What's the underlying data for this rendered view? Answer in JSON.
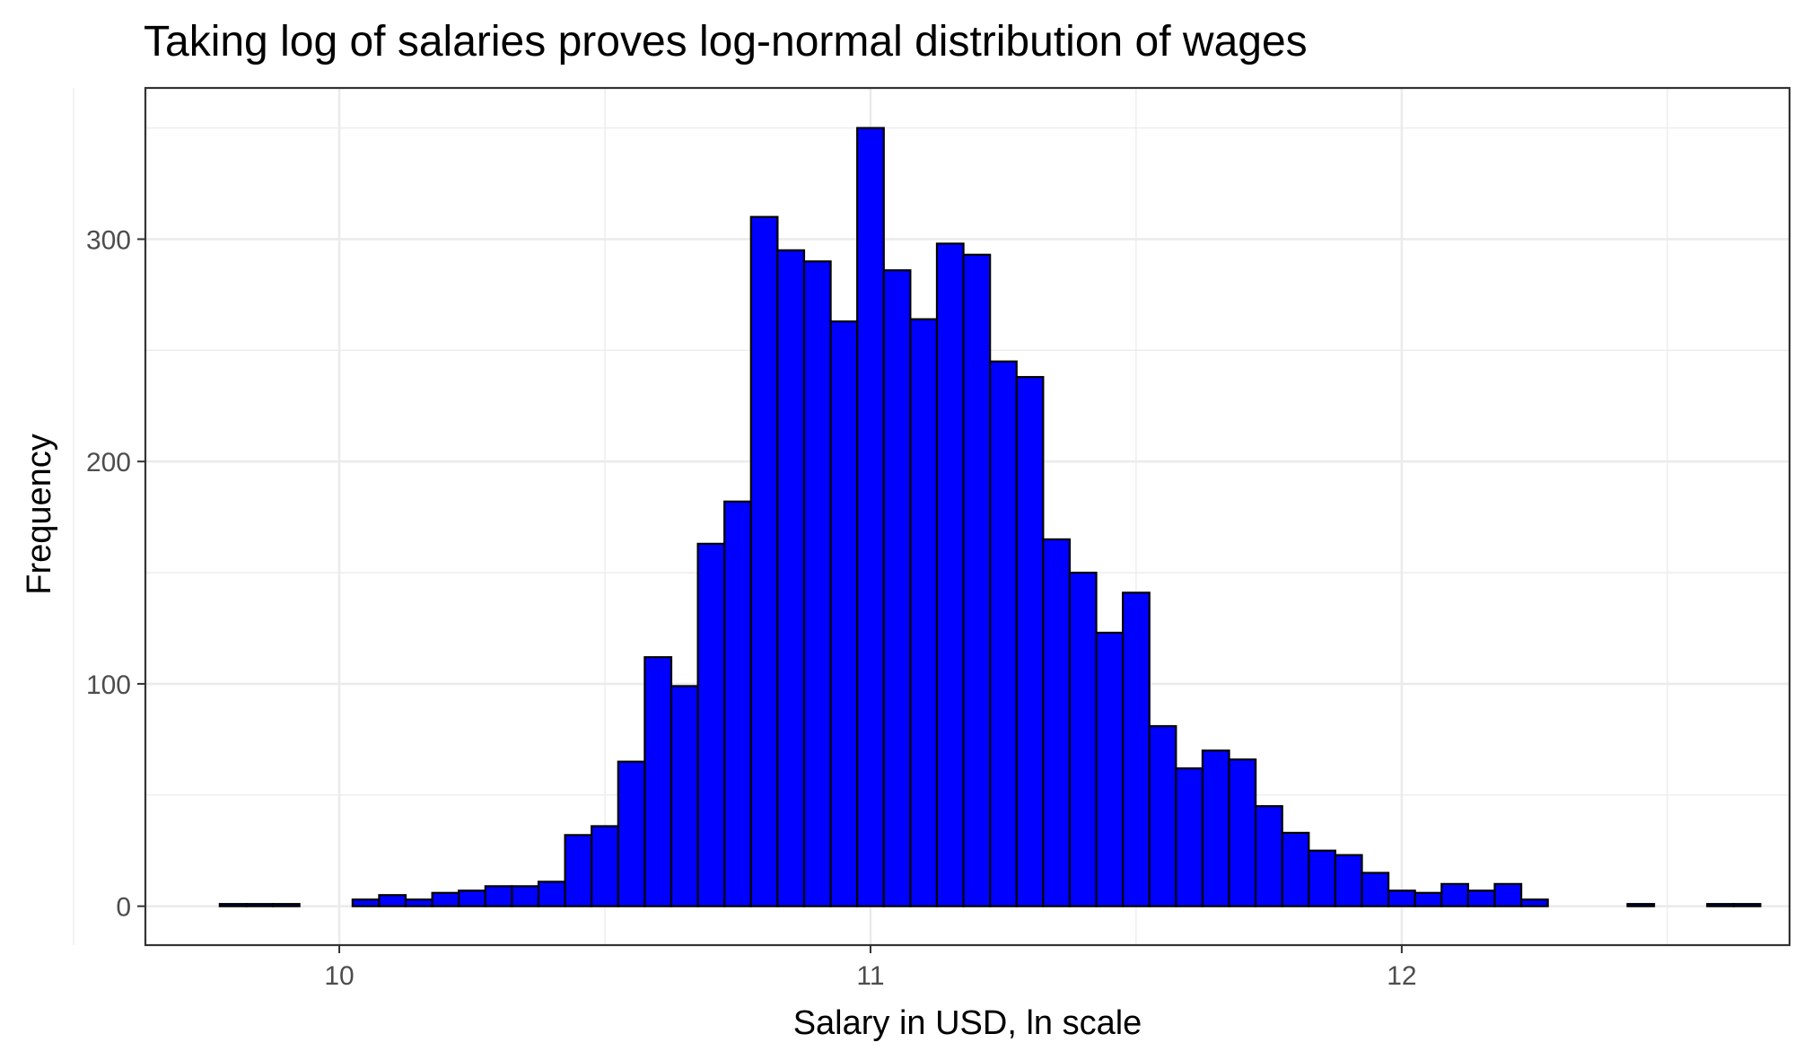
{
  "chart_data": {
    "type": "bar",
    "subtype": "histogram",
    "title": "Taking log of salaries proves log-normal distribution of wages",
    "xlabel": "Salary in USD, ln scale",
    "ylabel": "Frequency",
    "xlim": [
      9.635,
      12.73
    ],
    "ylim": [
      -17.5,
      368
    ],
    "x_ticks": [
      10,
      11,
      12
    ],
    "y_ticks": [
      0,
      100,
      200,
      300
    ],
    "x_minor_ticks": [
      9.5,
      10.5,
      11.5,
      12.5
    ],
    "y_minor_ticks": [
      50,
      150,
      250,
      350
    ],
    "grid": true,
    "bin_width": 0.05,
    "fill_color": "#0000ff",
    "outline_color": "#000000",
    "bin_centers": [
      9.8,
      9.85,
      9.9,
      9.95,
      10.0,
      10.05,
      10.1,
      10.15,
      10.2,
      10.25,
      10.3,
      10.35,
      10.4,
      10.45,
      10.5,
      10.55,
      10.6,
      10.65,
      10.7,
      10.75,
      10.8,
      10.85,
      10.9,
      10.95,
      11.0,
      11.05,
      11.1,
      11.15,
      11.2,
      11.25,
      11.3,
      11.35,
      11.4,
      11.45,
      11.5,
      11.55,
      11.6,
      11.65,
      11.7,
      11.75,
      11.8,
      11.85,
      11.9,
      11.95,
      12.0,
      12.05,
      12.1,
      12.15,
      12.2,
      12.25,
      12.3,
      12.35,
      12.4,
      12.45,
      12.5,
      12.55,
      12.6,
      12.65
    ],
    "values": [
      1,
      1,
      1,
      0,
      0,
      3,
      5,
      3,
      6,
      7,
      9,
      9,
      11,
      32,
      36,
      65,
      112,
      99,
      163,
      182,
      310,
      295,
      290,
      263,
      350,
      286,
      264,
      298,
      293,
      245,
      238,
      165,
      150,
      123,
      141,
      81,
      62,
      70,
      66,
      45,
      33,
      25,
      23,
      15,
      7,
      6,
      10,
      7,
      10,
      3,
      0,
      0,
      0,
      1,
      0,
      0,
      1,
      1
    ]
  }
}
